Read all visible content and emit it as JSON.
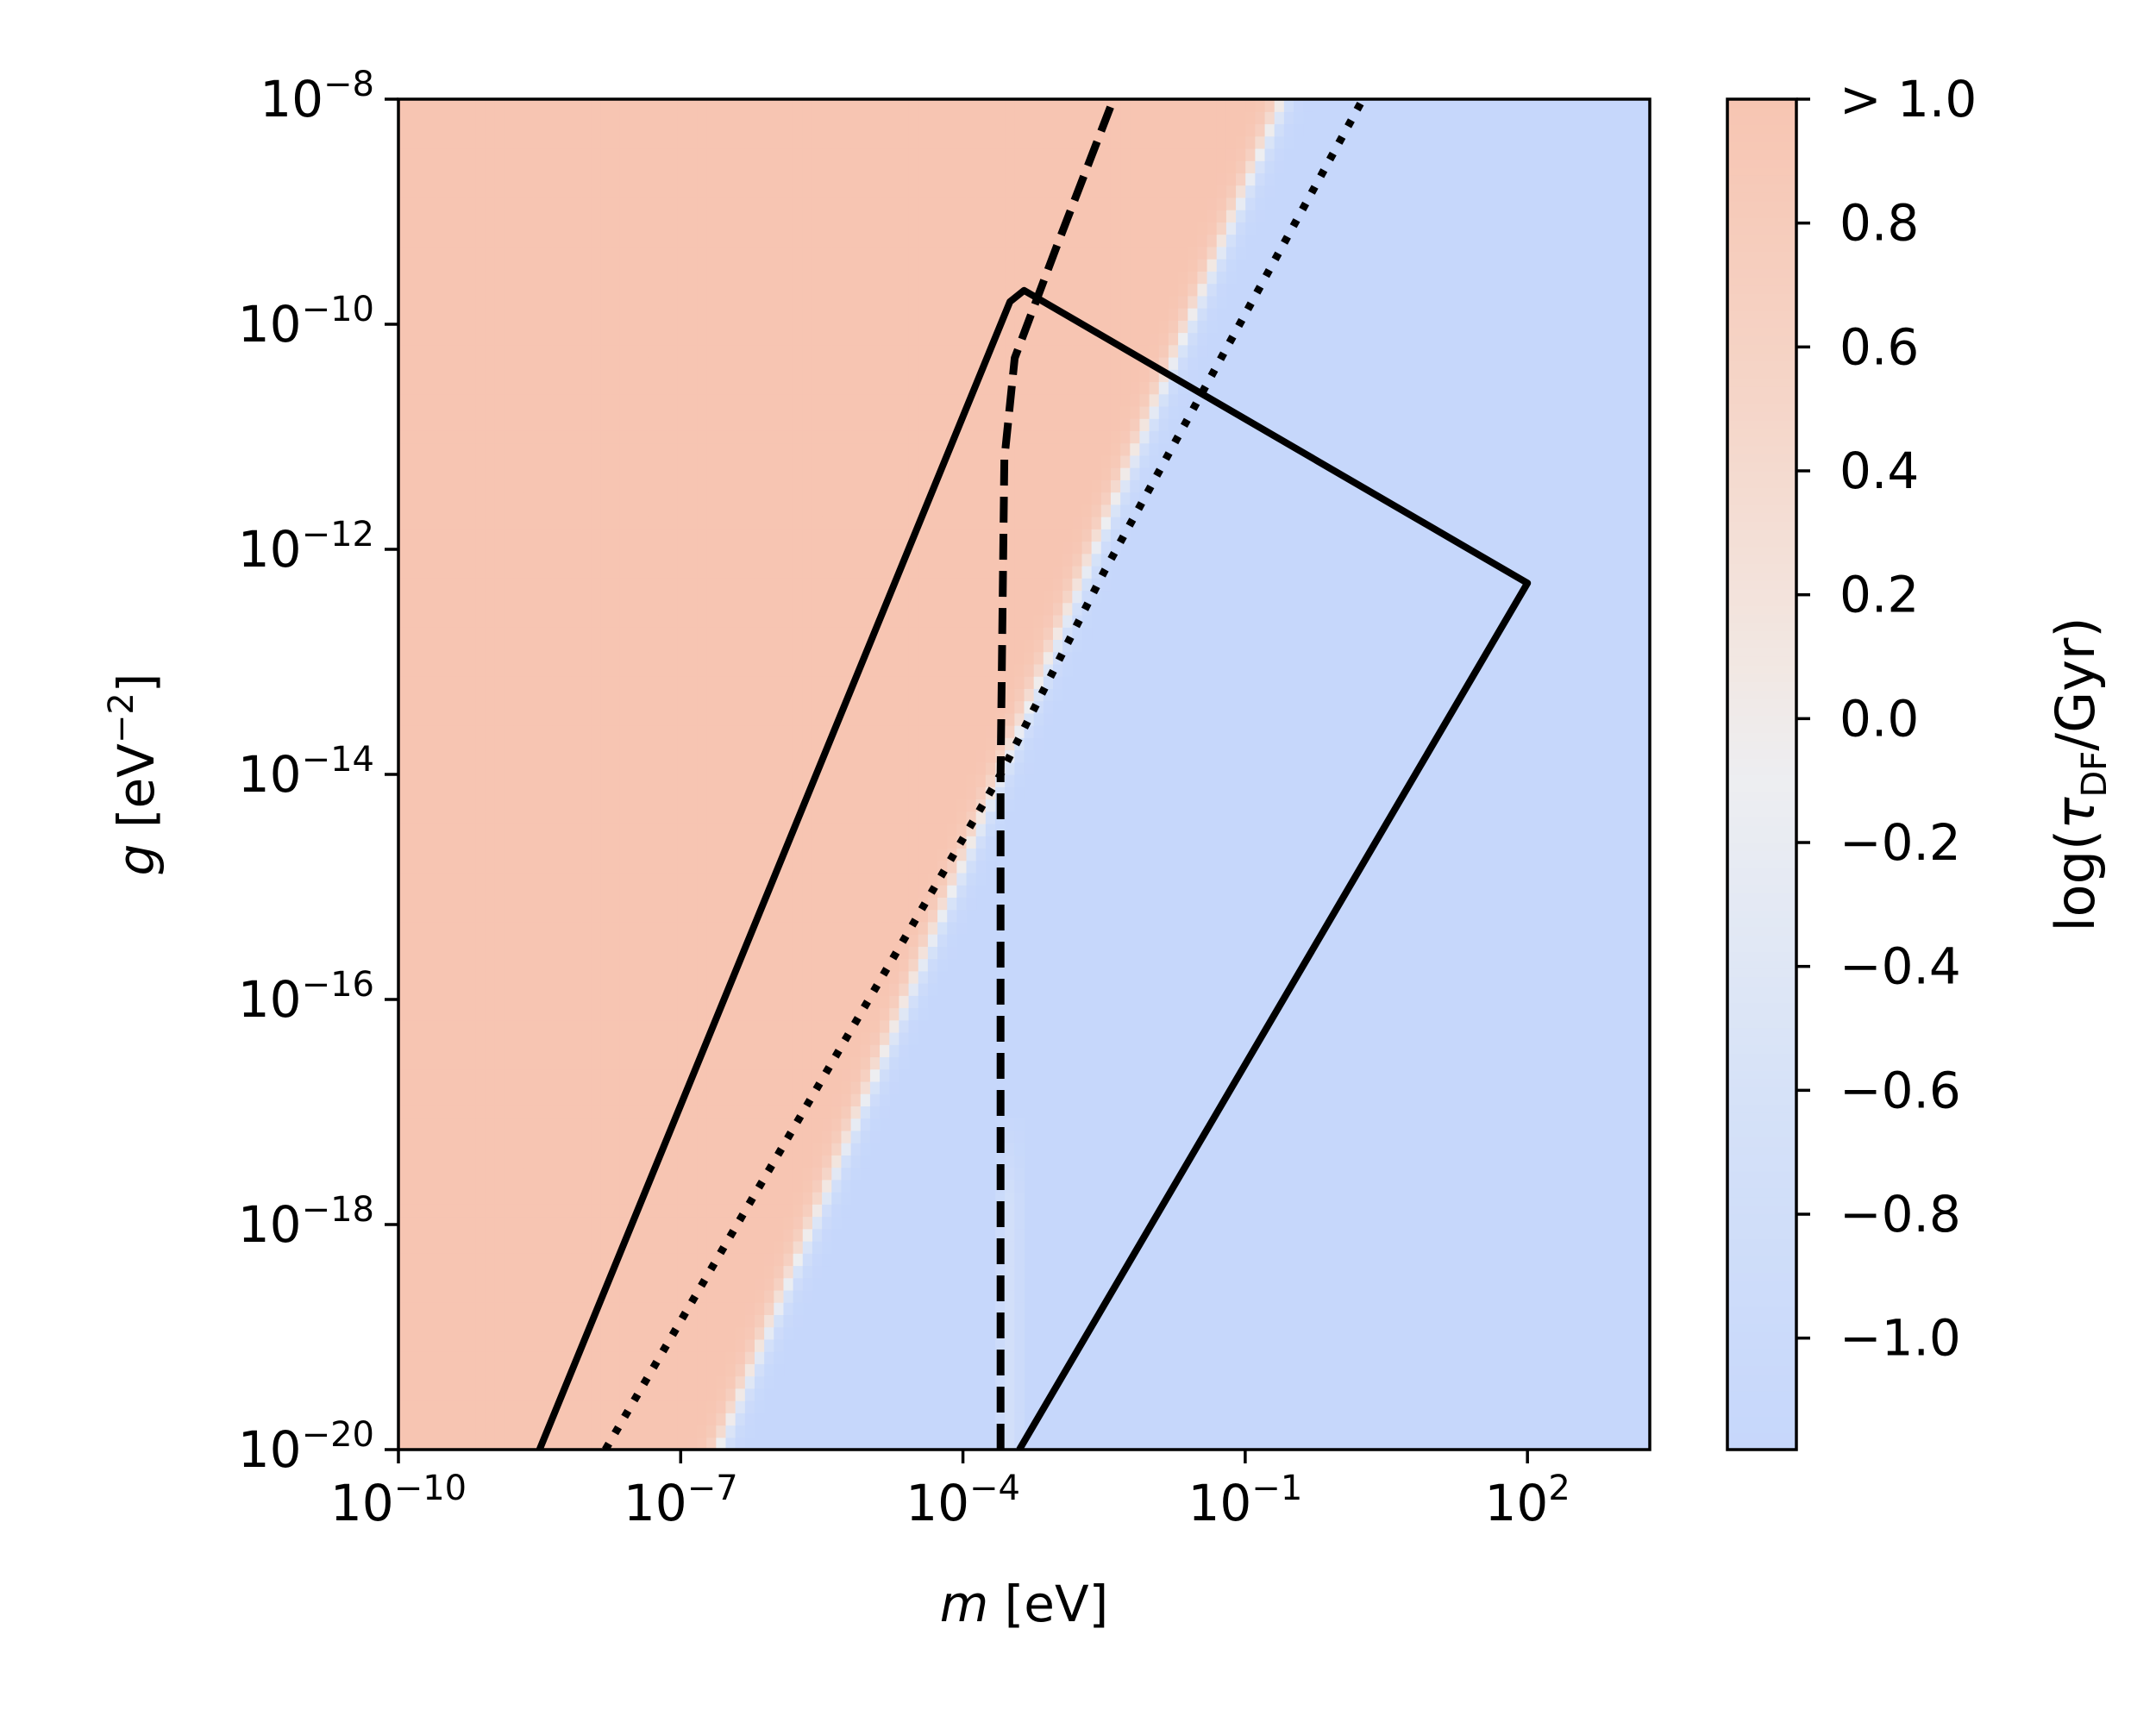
{
  "chart_data": {
    "type": "heatmap",
    "title": "",
    "xlabel": {
      "var": "m",
      "unit": " [eV]"
    },
    "ylabel": {
      "var": "g",
      "unit": " [eV",
      "unit_sup": "−2",
      "unit_end": "]"
    },
    "xscale": "log10",
    "yscale": "log10",
    "xlim_exp": [
      -10,
      3.3
    ],
    "ylim_exp": [
      -20,
      -8
    ],
    "x_ticks": [
      {
        "exp": -10,
        "base": "10",
        "sup": "−10"
      },
      {
        "exp": -7,
        "base": "10",
        "sup": "−7"
      },
      {
        "exp": -4,
        "base": "10",
        "sup": "−4"
      },
      {
        "exp": -1,
        "base": "10",
        "sup": "−1"
      },
      {
        "exp": 2,
        "base": "10",
        "sup": "2"
      }
    ],
    "y_ticks": [
      {
        "exp": -8,
        "base": "10",
        "sup": "−8"
      },
      {
        "exp": -10,
        "base": "10",
        "sup": "−10"
      },
      {
        "exp": -12,
        "base": "10",
        "sup": "−12"
      },
      {
        "exp": -14,
        "base": "10",
        "sup": "−14"
      },
      {
        "exp": -16,
        "base": "10",
        "sup": "−16"
      },
      {
        "exp": -18,
        "base": "10",
        "sup": "−18"
      },
      {
        "exp": -20,
        "base": "10",
        "sup": "−20"
      }
    ],
    "colorbar": {
      "label": {
        "pre": "log(",
        "sym": "τ",
        "sub": "DF",
        "post": "/Gyr)"
      },
      "range": [
        -1.18,
        1.0
      ],
      "ticks": [
        {
          "value": 1.0,
          "label": "> 1.0"
        },
        {
          "value": 0.8,
          "label": "0.8"
        },
        {
          "value": 0.6,
          "label": "0.6"
        },
        {
          "value": 0.4,
          "label": "0.4"
        },
        {
          "value": 0.2,
          "label": "0.2"
        },
        {
          "value": 0.0,
          "label": "0.0"
        },
        {
          "value": -0.2,
          "label": "−0.2"
        },
        {
          "value": -0.4,
          "label": "−0.4"
        },
        {
          "value": -0.6,
          "label": "−0.6"
        },
        {
          "value": -0.8,
          "label": "−0.8"
        },
        {
          "value": -1.0,
          "label": "−1.0"
        }
      ]
    },
    "colormap": {
      "low": "#c6d7fb",
      "mid": "#eeeeef",
      "high": "#f7c5b2",
      "stops": [
        {
          "value": -1.18,
          "color": "#c6d7fb"
        },
        {
          "value": -0.6,
          "color": "#d6e2f8"
        },
        {
          "value": -0.1,
          "color": "#edeef1"
        },
        {
          "value": 0.1,
          "color": "#f2e7e2"
        },
        {
          "value": 0.5,
          "color": "#f5d6c9"
        },
        {
          "value": 1.0,
          "color": "#f7c5b2"
        }
      ]
    },
    "heatmap_field": {
      "description_of_bands": "transition along log10(g) = 2*log10(m) + c",
      "transition_offset_c": -6.8,
      "transition_width": 0.35,
      "low_value": -1.18,
      "high_value": 1.0,
      "secondary_bright_strip_log10_m": [
        -3.7,
        -3.3
      ],
      "secondary_bright_strip_value": -0.75,
      "secondary_strip_upper_log10_g": -17.0
    },
    "series": [
      {
        "style": "solid",
        "points": [
          [
            -8.5,
            -20.0
          ],
          [
            -3.5,
            -9.8
          ],
          [
            -3.35,
            -9.7
          ],
          [
            2.0,
            -12.3
          ],
          [
            -3.4,
            -20.0
          ]
        ]
      },
      {
        "style": "dashed",
        "points": [
          [
            -3.6,
            -20.0
          ],
          [
            -3.6,
            -14.0
          ],
          [
            -3.56,
            -11.2
          ],
          [
            -3.45,
            -10.3
          ],
          [
            -3.0,
            -9.3
          ],
          [
            -2.4,
            -8.0
          ]
        ]
      },
      {
        "style": "dotted",
        "points": [
          [
            -7.8,
            -20.0
          ],
          [
            -3.6,
            -14.0
          ],
          [
            -2.5,
            -12.2
          ],
          [
            0.25,
            -8.0
          ]
        ]
      }
    ]
  }
}
